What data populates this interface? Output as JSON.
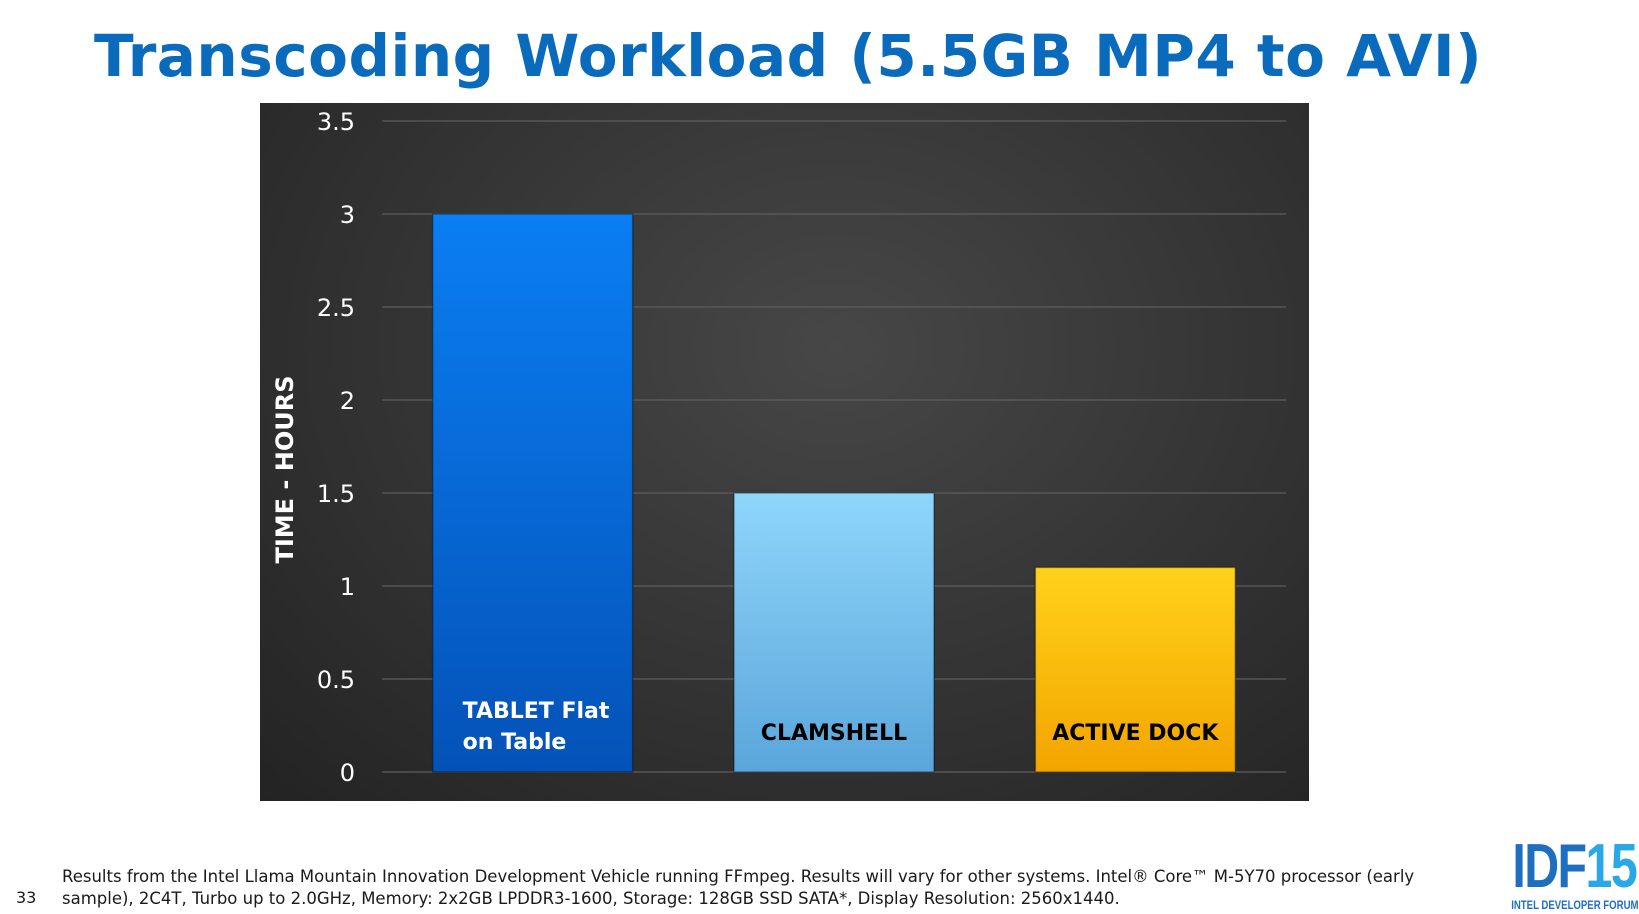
{
  "slide": {
    "title": "Transcoding Workload (5.5GB MP4 to AVI)",
    "number": "33",
    "footnote": "Results from the Intel Llama Mountain Innovation Development Vehicle running FFmpeg. Results will vary for other systems. Intel® Core™ M-5Y70 processor (early sample), 2C4T, Turbo up to 2.0GHz, Memory: 2x2GB LPDDR3-1600, Storage: 128GB SSD SATA*, Display Resolution: 2560x1440.",
    "logo": {
      "main": "IDF",
      "accent": "15",
      "sub": "INTEL DEVELOPER FORUM"
    }
  },
  "chart_data": {
    "type": "bar",
    "title": "Transcoding Workload (5.5GB MP4 to AVI)",
    "ylabel": "TIME - HOURS",
    "xlabel": "",
    "ylim": [
      0,
      3.5
    ],
    "yticks": [
      "0",
      "0.5",
      "1",
      "1.5",
      "2",
      "2.5",
      "3",
      "3.5"
    ],
    "grid": true,
    "legend": "none",
    "bars": [
      {
        "label_lines": [
          "TABLET Flat",
          "on Table"
        ],
        "value": 3.0,
        "color_top": "#0a7ef2",
        "color_bottom": "#0452b8",
        "label_color": "#ffffff"
      },
      {
        "label_lines": [
          "CLAMSHELL"
        ],
        "value": 1.5,
        "color_top": "#8fd6fb",
        "color_bottom": "#5aa6db",
        "label_color": "#000000"
      },
      {
        "label_lines": [
          "ACTIVE DOCK"
        ],
        "value": 1.1,
        "color_top": "#ffd21a",
        "color_bottom": "#f3a400",
        "label_color": "#000000"
      }
    ]
  }
}
